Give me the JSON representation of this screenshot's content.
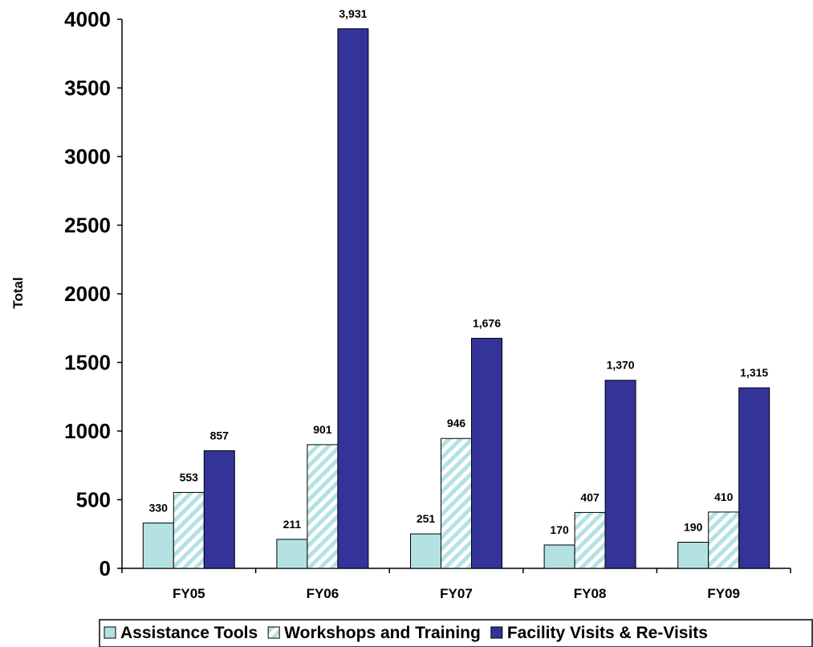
{
  "chart_data": {
    "type": "bar",
    "categories": [
      "FY05",
      "FY06",
      "FY07",
      "FY08",
      "FY09"
    ],
    "series": [
      {
        "name": "Assistance Tools",
        "values": [
          330,
          211,
          251,
          170,
          190
        ],
        "labels": [
          "330",
          "211",
          "251",
          "170",
          "190"
        ],
        "color": "#b4e2e2",
        "pattern": "solid"
      },
      {
        "name": "Workshops and Training",
        "values": [
          553,
          901,
          946,
          407,
          410
        ],
        "labels": [
          "553",
          "901",
          "946",
          "407",
          "410"
        ],
        "color": "#b4e2e2",
        "pattern": "diagonal-stripes"
      },
      {
        "name": "Facility Visits & Re-Visits",
        "values": [
          857,
          3931,
          1676,
          1370,
          1315
        ],
        "labels": [
          "857",
          "3,931",
          "1,676",
          "1,370",
          "1,315"
        ],
        "color": "#333399",
        "pattern": "solid"
      }
    ],
    "ylabel": "Total",
    "xlabel": "",
    "ylim": [
      0,
      4000
    ],
    "yticks": [
      "0",
      "500",
      "1000",
      "1500",
      "2000",
      "2500",
      "3000",
      "3500",
      "4000"
    ],
    "grid": false,
    "legend": "bottom"
  }
}
